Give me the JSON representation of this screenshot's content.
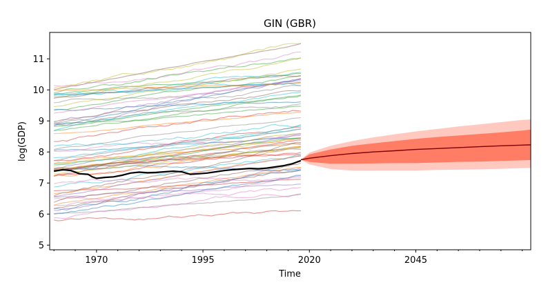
{
  "chart_data": {
    "type": "line",
    "title": "GIN (GBR)",
    "xlabel": "Time",
    "ylabel": "log(GDP)",
    "xlim": [
      1959,
      2072
    ],
    "ylim": [
      4.85,
      11.85
    ],
    "x_ticks": [
      1970,
      1995,
      2020,
      2045
    ],
    "y_ticks": [
      5,
      6,
      7,
      8,
      9,
      10,
      11
    ],
    "grid": false,
    "legend": "none",
    "history_span": [
      1960,
      2018
    ],
    "background_series": {
      "count": 70,
      "approx_start_range": [
        5.75,
        10.3
      ],
      "approx_end_range": [
        6.5,
        11.35
      ],
      "color_cycle": [
        "#1f77b4",
        "#ff7f0e",
        "#2ca02c",
        "#d62728",
        "#9467bd",
        "#8c564b",
        "#e377c2",
        "#7f7f7f",
        "#bcbd22",
        "#17becf"
      ]
    },
    "focus_series": {
      "color": "#000000",
      "x": [
        1960,
        1962,
        1964,
        1966,
        1968,
        1969,
        1970,
        1972,
        1974,
        1976,
        1978,
        1980,
        1982,
        1984,
        1986,
        1988,
        1990,
        1992,
        1994,
        1996,
        1998,
        2000,
        2002,
        2004,
        2006,
        2008,
        2010,
        2012,
        2014,
        2016,
        2018
      ],
      "y": [
        7.38,
        7.43,
        7.4,
        7.3,
        7.28,
        7.2,
        7.15,
        7.18,
        7.2,
        7.25,
        7.32,
        7.35,
        7.33,
        7.34,
        7.36,
        7.38,
        7.36,
        7.28,
        7.3,
        7.32,
        7.36,
        7.4,
        7.43,
        7.45,
        7.47,
        7.46,
        7.48,
        7.52,
        7.56,
        7.62,
        7.72
      ]
    },
    "forecast": {
      "color": "#ff6347",
      "x": [
        2018,
        2020,
        2025,
        2030,
        2035,
        2040,
        2045,
        2050,
        2055,
        2060,
        2065,
        2070,
        2072
      ],
      "median": [
        7.75,
        7.8,
        7.88,
        7.95,
        8.0,
        8.04,
        8.08,
        8.11,
        8.14,
        8.17,
        8.2,
        8.22,
        8.23
      ],
      "inner_lower": [
        7.75,
        7.68,
        7.62,
        7.62,
        7.63,
        7.64,
        7.64,
        7.66,
        7.68,
        7.69,
        7.71,
        7.73,
        7.74
      ],
      "inner_upper": [
        7.75,
        7.92,
        8.08,
        8.2,
        8.28,
        8.35,
        8.42,
        8.48,
        8.53,
        8.58,
        8.63,
        8.69,
        8.72
      ],
      "outer_lower": [
        7.75,
        7.6,
        7.45,
        7.4,
        7.4,
        7.4,
        7.4,
        7.42,
        7.43,
        7.44,
        7.46,
        7.48,
        7.49
      ],
      "outer_upper": [
        7.75,
        7.98,
        8.2,
        8.35,
        8.47,
        8.57,
        8.66,
        8.74,
        8.82,
        8.89,
        8.96,
        9.03,
        9.05
      ]
    }
  }
}
